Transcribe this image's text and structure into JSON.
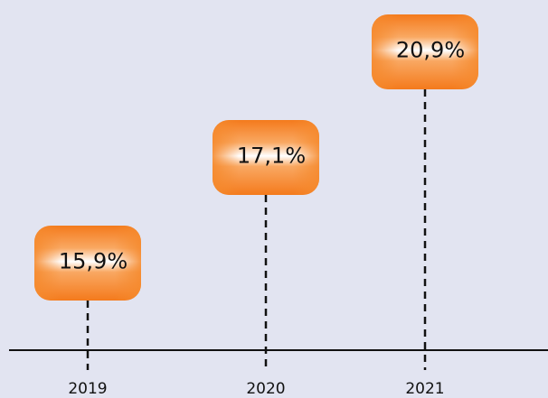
{
  "chart_data": {
    "type": "callout",
    "categories": [
      "2019",
      "2020",
      "2021"
    ],
    "values": [
      15.9,
      17.1,
      20.9
    ],
    "value_labels": [
      "15,9%",
      "17,1%",
      "20,9%"
    ],
    "color": "#f58a2e"
  }
}
